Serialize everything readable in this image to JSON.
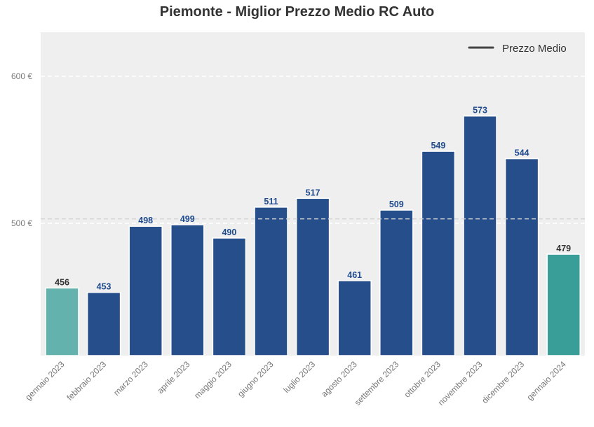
{
  "chart_data": {
    "type": "bar",
    "title": "Piemonte - Miglior Prezzo Medio RC Auto",
    "xlabel": "",
    "ylabel": "",
    "categories": [
      "gennaio 2023",
      "febbraio 2023",
      "marzo 2023",
      "aprile 2023",
      "maggio 2023",
      "giugno 2023",
      "luglio 2023",
      "agosto 2023",
      "settembre 2023",
      "ottobre 2023",
      "novembre 2023",
      "dicembre 2023",
      "gennaio 2024"
    ],
    "values": [
      456,
      453,
      498,
      499,
      490,
      511,
      517,
      461,
      509,
      549,
      573,
      544,
      479
    ],
    "ylim": [
      410,
      630
    ],
    "yticks": [
      500,
      600
    ],
    "ytick_labels": [
      "500 €",
      "600 €"
    ],
    "mean_line": 503,
    "legend": {
      "label": "Prezzo Medio",
      "placement": "top-right"
    },
    "grid": true,
    "colors": {
      "default_bar": "#264e8a",
      "first_bar": "#64b2ad",
      "last_bar": "#3a9e98",
      "value_label_default": "#1f4b8e",
      "value_label_highlight": "#333333",
      "plot_background": "#efefef",
      "mean_line": "#d4d4d4"
    }
  }
}
